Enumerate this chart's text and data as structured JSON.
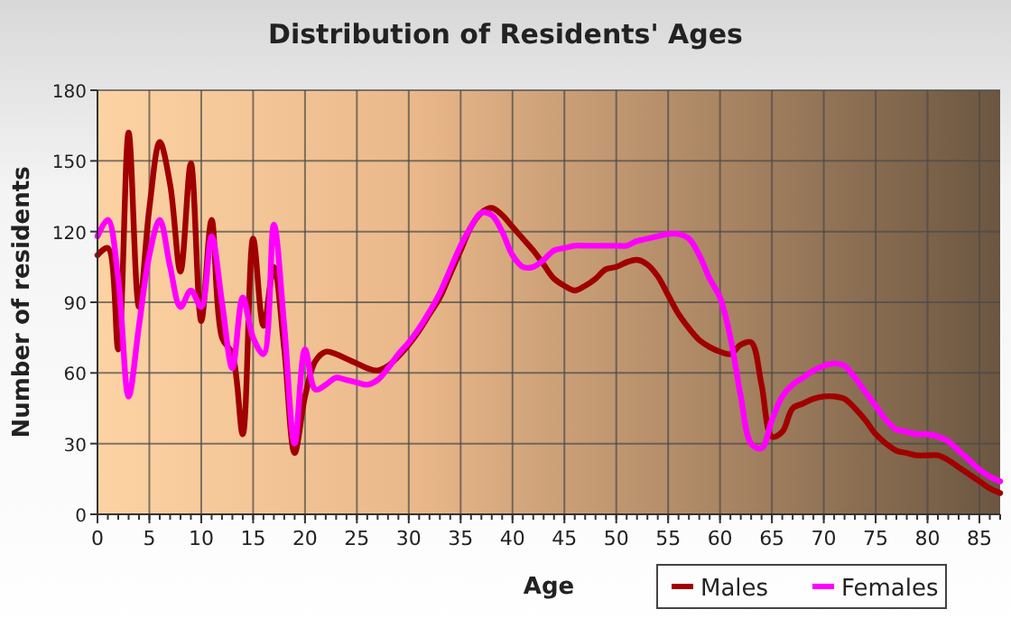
{
  "chart_data": {
    "type": "line",
    "title": "Distribution of Residents' Ages",
    "xlabel": "Age",
    "ylabel": "Number of residents",
    "x": [
      0,
      1,
      2,
      3,
      4,
      5,
      6,
      7,
      8,
      9,
      10,
      11,
      12,
      13,
      14,
      15,
      16,
      17,
      18,
      19,
      20,
      21,
      22,
      23,
      24,
      25,
      26,
      27,
      28,
      29,
      30,
      31,
      32,
      33,
      34,
      35,
      36,
      37,
      38,
      39,
      40,
      41,
      42,
      43,
      44,
      45,
      46,
      47,
      48,
      49,
      50,
      51,
      52,
      53,
      54,
      55,
      56,
      57,
      58,
      59,
      60,
      61,
      62,
      63,
      64,
      65,
      66,
      67,
      68,
      69,
      70,
      71,
      72,
      73,
      74,
      75,
      76,
      77,
      78,
      79,
      80,
      81,
      82,
      83,
      84,
      85,
      86,
      87
    ],
    "series": [
      {
        "name": "Males",
        "color": "#a00000",
        "values": [
          110,
          113,
          70,
          162,
          88,
          130,
          158,
          140,
          103,
          149,
          82,
          125,
          75,
          68,
          34,
          117,
          80,
          105,
          70,
          26,
          50,
          65,
          69,
          68,
          66,
          64,
          62,
          61,
          63,
          67,
          72,
          78,
          85,
          92,
          102,
          112,
          122,
          128,
          130,
          127,
          122,
          117,
          112,
          106,
          100,
          97,
          95,
          97,
          100,
          104,
          105,
          107,
          108,
          106,
          101,
          93,
          85,
          79,
          74,
          71,
          69,
          68,
          72,
          73,
          55,
          33,
          35,
          45,
          47,
          49,
          50,
          50,
          49,
          45,
          40,
          34,
          30,
          27,
          26,
          25,
          25,
          25,
          23,
          20,
          17,
          14,
          11,
          9
        ]
      },
      {
        "name": "Females",
        "color": "#ff00ff",
        "values": [
          118,
          125,
          100,
          50,
          80,
          110,
          125,
          105,
          88,
          95,
          88,
          118,
          90,
          62,
          92,
          75,
          68,
          123,
          80,
          30,
          70,
          53,
          55,
          58,
          57,
          56,
          55,
          57,
          62,
          68,
          73,
          79,
          86,
          94,
          104,
          114,
          122,
          128,
          127,
          120,
          110,
          105,
          105,
          108,
          112,
          113,
          114,
          114,
          114,
          114,
          114,
          114,
          116,
          117,
          118,
          119,
          119,
          117,
          110,
          100,
          92,
          75,
          50,
          30,
          28,
          40,
          50,
          55,
          58,
          61,
          63,
          64,
          63,
          58,
          52,
          46,
          40,
          36,
          35,
          34,
          34,
          33,
          31,
          27,
          23,
          19,
          16,
          14
        ]
      }
    ],
    "xlim": [
      0,
      87
    ],
    "xticks": [
      0,
      5,
      10,
      15,
      20,
      25,
      30,
      35,
      40,
      45,
      50,
      55,
      60,
      65,
      70,
      75,
      80,
      85
    ],
    "ylim": [
      0,
      180
    ],
    "yticks": [
      0,
      30,
      60,
      90,
      120,
      150,
      180
    ],
    "grid": true,
    "legend": "bottom right",
    "line_style": "solid",
    "marker": "none"
  }
}
